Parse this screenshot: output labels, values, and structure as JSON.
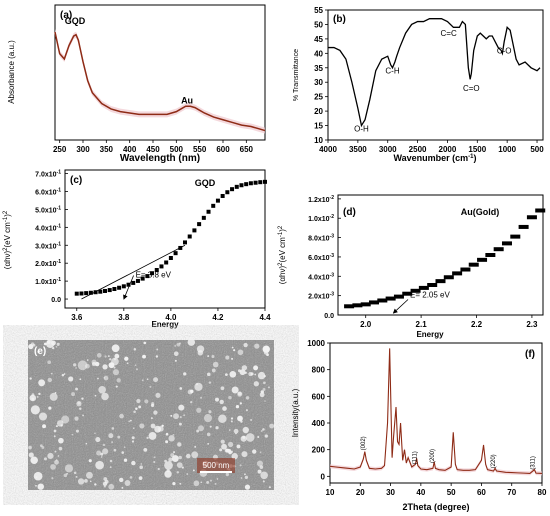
{
  "figure": {
    "colors": {
      "brown": "#8e2b16",
      "shade": "#f0c9cf",
      "black": "#000000",
      "sem_grey": "#8c8c8c"
    }
  },
  "chart_data": [
    {
      "id": "a",
      "type": "line",
      "panel_label": "(a)",
      "title": "",
      "xlabel": "Wavelength (nm)",
      "ylabel": "Absorbance (a.u.)",
      "xlim": [
        240,
        690
      ],
      "ylim": [
        0,
        1
      ],
      "y_ticks_shown": false,
      "x_ticks": [
        250,
        300,
        350,
        400,
        450,
        500,
        550,
        600,
        650
      ],
      "annotations": [
        {
          "text": "GQD",
          "x": 283,
          "y": 0.86
        },
        {
          "text": "Au",
          "x": 523,
          "y": 0.27
        }
      ],
      "series": [
        {
          "x": [
            240,
            250,
            260,
            270,
            280,
            285,
            290,
            300,
            310,
            320,
            340,
            360,
            380,
            400,
            420,
            440,
            460,
            480,
            500,
            510,
            520,
            530,
            540,
            550,
            560,
            580,
            600,
            620,
            640,
            660,
            680,
            690
          ],
          "y": [
            0.8,
            0.64,
            0.6,
            0.7,
            0.77,
            0.78,
            0.74,
            0.58,
            0.44,
            0.35,
            0.27,
            0.23,
            0.21,
            0.2,
            0.19,
            0.19,
            0.19,
            0.19,
            0.21,
            0.23,
            0.25,
            0.25,
            0.24,
            0.22,
            0.2,
            0.17,
            0.15,
            0.13,
            0.11,
            0.1,
            0.08,
            0.07
          ]
        }
      ]
    },
    {
      "id": "b",
      "type": "line",
      "panel_label": "(b)",
      "title": "",
      "xlabel": "Wavenumber (cm-1)",
      "ylabel": "% Transmittance",
      "xlim": [
        4000,
        400
      ],
      "ylim": [
        10,
        55
      ],
      "x_ticks": [
        4000,
        3500,
        3000,
        2500,
        2000,
        1500,
        1000,
        500
      ],
      "y_ticks": [
        10,
        15,
        20,
        25,
        30,
        35,
        40,
        45,
        50,
        55
      ],
      "annotations": [
        {
          "text": "O-H",
          "x": 3440,
          "y": 13
        },
        {
          "text": "C-H",
          "x": 2920,
          "y": 33
        },
        {
          "text": "C=C",
          "x": 1980,
          "y": 46
        },
        {
          "text": "C=O",
          "x": 1600,
          "y": 27
        },
        {
          "text": "C-O",
          "x": 1050,
          "y": 40
        }
      ],
      "series": [
        {
          "x": [
            4000,
            3900,
            3800,
            3700,
            3600,
            3500,
            3440,
            3380,
            3300,
            3200,
            3100,
            3000,
            2950,
            2920,
            2880,
            2850,
            2800,
            2700,
            2600,
            2500,
            2400,
            2300,
            2200,
            2100,
            2000,
            1900,
            1800,
            1750,
            1700,
            1680,
            1650,
            1620,
            1600,
            1560,
            1500,
            1450,
            1400,
            1350,
            1300,
            1250,
            1200,
            1150,
            1100,
            1080,
            1050,
            1000,
            950,
            900,
            850,
            800,
            700,
            600,
            500,
            450
          ],
          "y": [
            42,
            42,
            41,
            38,
            30,
            21,
            15,
            17,
            24,
            34,
            38,
            39,
            36,
            35,
            37,
            39,
            42,
            47,
            50,
            51,
            51,
            52,
            52,
            52,
            51,
            49,
            49,
            51,
            50,
            44,
            35,
            31,
            33,
            41,
            46,
            47,
            46,
            45,
            46,
            46,
            44,
            42,
            41,
            40,
            44,
            49,
            48,
            43,
            38,
            36,
            37,
            35,
            34,
            35
          ]
        }
      ]
    },
    {
      "id": "c",
      "type": "scatter",
      "panel_label": "(c)",
      "title": "GQD",
      "xlabel": "Energy",
      "ylabel": "(αhν)2(eV cm-1)2",
      "xlim": [
        3.55,
        4.4
      ],
      "ylim": [
        -0.05,
        0.72
      ],
      "x_ticks": [
        3.6,
        3.8,
        4.0,
        4.2,
        4.4
      ],
      "y_ticks": [
        "0.0",
        "1.0x10-1",
        "2.0x10-1",
        "3.0x10-1",
        "4.0x10-1",
        "5.0x10-1",
        "6.0x10-1",
        "7.0x10-1"
      ],
      "annotations": [
        {
          "text": "E= 3.8 eV",
          "x": 3.85,
          "y": 0.12
        }
      ],
      "series": [
        {
          "x": [
            3.6,
            3.62,
            3.64,
            3.66,
            3.68,
            3.7,
            3.72,
            3.74,
            3.76,
            3.78,
            3.8,
            3.82,
            3.84,
            3.86,
            3.88,
            3.9,
            3.92,
            3.94,
            3.96,
            3.98,
            4.0,
            4.02,
            4.04,
            4.06,
            4.08,
            4.1,
            4.12,
            4.14,
            4.16,
            4.18,
            4.2,
            4.22,
            4.24,
            4.26,
            4.28,
            4.3,
            4.32,
            4.34,
            4.36,
            4.38,
            4.4
          ],
          "y": [
            0.03,
            0.031,
            0.033,
            0.035,
            0.038,
            0.041,
            0.045,
            0.05,
            0.056,
            0.063,
            0.071,
            0.08,
            0.09,
            0.101,
            0.114,
            0.128,
            0.144,
            0.162,
            0.182,
            0.204,
            0.229,
            0.256,
            0.285,
            0.316,
            0.349,
            0.383,
            0.418,
            0.453,
            0.487,
            0.52,
            0.549,
            0.575,
            0.596,
            0.613,
            0.626,
            0.635,
            0.641,
            0.646,
            0.649,
            0.652,
            0.654
          ]
        }
      ]
    },
    {
      "id": "d",
      "type": "scatter",
      "panel_label": "(d)",
      "title": "Au(Gold)",
      "xlabel": "Energy",
      "ylabel": "(αhν)2(eV cm-1)2",
      "xlim": [
        1.95,
        2.32
      ],
      "ylim": [
        0,
        0.0124
      ],
      "x_ticks": [
        2.0,
        2.1,
        2.2,
        2.3
      ],
      "y_ticks": [
        "0.0",
        "2.0x10-3",
        "4.0x10-3",
        "6.0x10-3",
        "8.0x10-3",
        "1.0x10-2",
        "1.2x10-2"
      ],
      "annotations": [
        {
          "text": "E= 2.05 eV",
          "x": 2.08,
          "y": 0.0016
        }
      ],
      "series": [
        {
          "x": [
            1.97,
            1.985,
            2.0,
            2.015,
            2.03,
            2.045,
            2.06,
            2.075,
            2.09,
            2.105,
            2.12,
            2.135,
            2.15,
            2.165,
            2.18,
            2.195,
            2.21,
            2.225,
            2.24,
            2.255,
            2.27,
            2.285,
            2.3,
            2.315
          ],
          "y": [
            0.0009,
            0.001,
            0.0011,
            0.0013,
            0.0015,
            0.0017,
            0.0019,
            0.0022,
            0.0025,
            0.0028,
            0.0031,
            0.0035,
            0.0039,
            0.0043,
            0.0047,
            0.0052,
            0.0057,
            0.0062,
            0.0068,
            0.0074,
            0.0081,
            0.0091,
            0.0101,
            0.0108
          ]
        }
      ]
    },
    {
      "id": "f",
      "type": "line",
      "panel_label": "(f)",
      "title": "",
      "xlabel": "2Theta (degree)",
      "ylabel": "Intensity(a.u.)",
      "xlim": [
        10,
        80
      ],
      "ylim": [
        -50,
        1000
      ],
      "x_ticks": [
        10,
        20,
        30,
        40,
        50,
        60,
        70,
        80
      ],
      "y_ticks": [
        0,
        200,
        400,
        600,
        800,
        1000
      ],
      "annotations": [
        {
          "text": "(002)",
          "x": 21.5
        },
        {
          "text": "(111)",
          "x": 38.5
        },
        {
          "text": "(200)",
          "x": 44.4
        },
        {
          "text": "(220)",
          "x": 64.5
        },
        {
          "text": "(311)",
          "x": 77.5
        }
      ],
      "series": [
        {
          "x": [
            10,
            12,
            14,
            16,
            18,
            20,
            21,
            21.5,
            22,
            23,
            25,
            27,
            28,
            29,
            29.7,
            30,
            30.5,
            31,
            31.8,
            32.3,
            32.8,
            33.3,
            34,
            34.6,
            35.2,
            35.8,
            37,
            38.2,
            38.6,
            39,
            40,
            42,
            44,
            44.4,
            44.8,
            46,
            48,
            50,
            50.7,
            51.4,
            52,
            54,
            56,
            58,
            60,
            60.7,
            61.4,
            62,
            64,
            64.5,
            65,
            68,
            70,
            72,
            74,
            76,
            77.5,
            78,
            80
          ],
          "y": [
            75,
            70,
            65,
            60,
            55,
            70,
            130,
            185,
            120,
            60,
            55,
            60,
            80,
            400,
            960,
            650,
            140,
            300,
            520,
            260,
            240,
            400,
            120,
            200,
            100,
            140,
            70,
            90,
            135,
            80,
            55,
            50,
            60,
            110,
            60,
            50,
            45,
            70,
            330,
            90,
            50,
            45,
            45,
            50,
            120,
            235,
            90,
            50,
            40,
            60,
            40,
            30,
            28,
            26,
            24,
            22,
            50,
            24,
            22
          ]
        }
      ]
    }
  ],
  "sem_panel": {
    "panel_label": "(e)",
    "scale_bar_label": "500 nm"
  }
}
